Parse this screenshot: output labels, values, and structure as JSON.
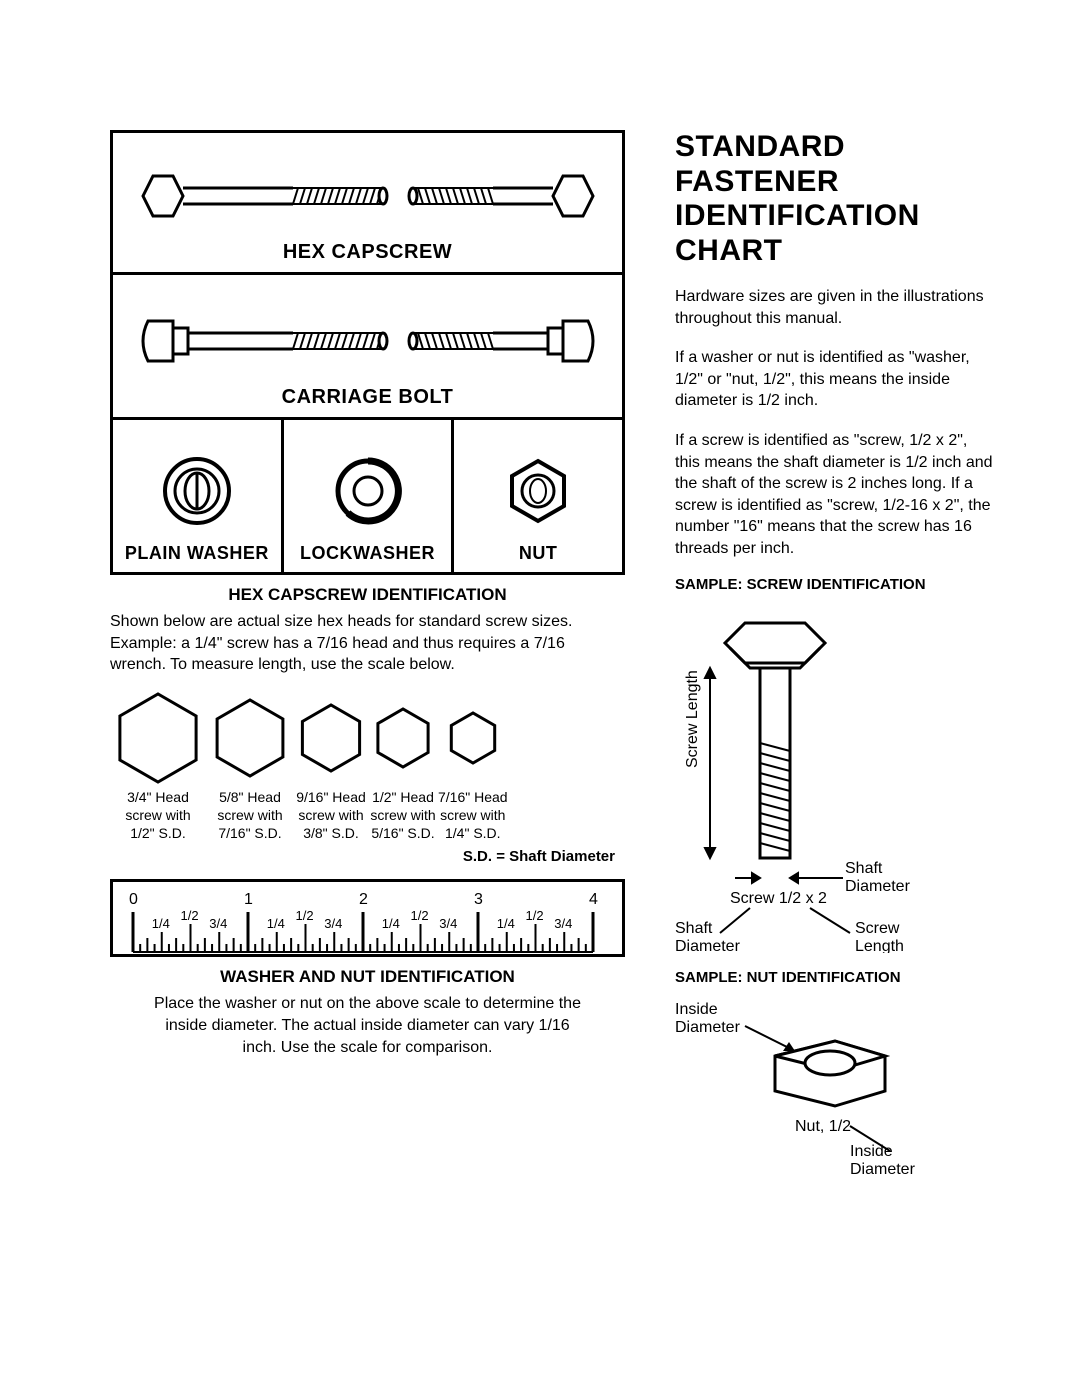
{
  "title": "STANDARD FASTENER IDENTIFICATION CHART",
  "left": {
    "hex_capscrew_label": "HEX CAPSCREW",
    "carriage_label": "CARRIAGE BOLT",
    "washer_labels": [
      "PLAIN WASHER",
      "LOCKWASHER",
      "NUT"
    ],
    "hex_id_title": "HEX CAPSCREW IDENTIFICATION",
    "hex_id_text": "Shown below are actual size hex heads for standard screw sizes. Example: a 1/4\" screw has a 7/16 head and thus requires a 7/16 wrench. To measure length, use the scale below.",
    "hex_heads": [
      {
        "size": 88,
        "l1": "3/4\" Head",
        "l2": "screw with",
        "l3": "1/2\" S.D."
      },
      {
        "size": 76,
        "l1": "5/8\" Head",
        "l2": "screw with",
        "l3": "7/16\" S.D."
      },
      {
        "size": 66,
        "l1": "9/16\" Head",
        "l2": "screw with",
        "l3": "3/8\" S.D."
      },
      {
        "size": 58,
        "l1": "1/2\" Head",
        "l2": "screw with",
        "l3": "5/16\" S.D."
      },
      {
        "size": 50,
        "l1": "7/16\" Head",
        "l2": "screw with",
        "l3": "1/4\" S.D."
      }
    ],
    "sd_note": "S.D. = Shaft Diameter",
    "ruler": {
      "majors": [
        "0",
        "1",
        "2",
        "3",
        "4"
      ],
      "quarters": [
        "1/4",
        "1/2",
        "3/4"
      ]
    },
    "washer_id_title": "WASHER AND NUT IDENTIFICATION",
    "washer_id_text": "Place the washer or nut on the above scale to determine the inside diameter. The actual inside diameter can vary 1/16 inch. Use the scale for comparison."
  },
  "right": {
    "p1": "Hardware sizes are given in the illustrations throughout this manual.",
    "p2": "If a washer or nut is identified as \"washer, 1/2\" or \"nut, 1/2\", this means the inside diameter is 1/2 inch.",
    "p3": "If a screw is identified as \"screw, 1/2 x 2\", this means the shaft diameter is 1/2 inch and the shaft of the screw is 2 inches long. If a screw is identified as \"screw, 1/2-16 x 2\", the number \"16\" means that the screw has 16 threads per inch.",
    "sample_screw_title": "SAMPLE: SCREW IDENTIFICATION",
    "screw_labels": {
      "screw_length": "Screw Length",
      "shaft_diameter": "Shaft Diameter",
      "screw_spec": "Screw 1/2 x 2",
      "shaft_diameter2": "Shaft Diameter",
      "screw_length2": "Screw Length"
    },
    "sample_nut_title": "SAMPLE: NUT IDENTIFICATION",
    "nut_labels": {
      "inside_diameter_top": "Inside Diameter",
      "nut_spec": "Nut, 1/2",
      "inside_diameter_bot": "Inside Diameter"
    }
  },
  "colors": {
    "stroke": "#000000",
    "bg": "#ffffff"
  }
}
